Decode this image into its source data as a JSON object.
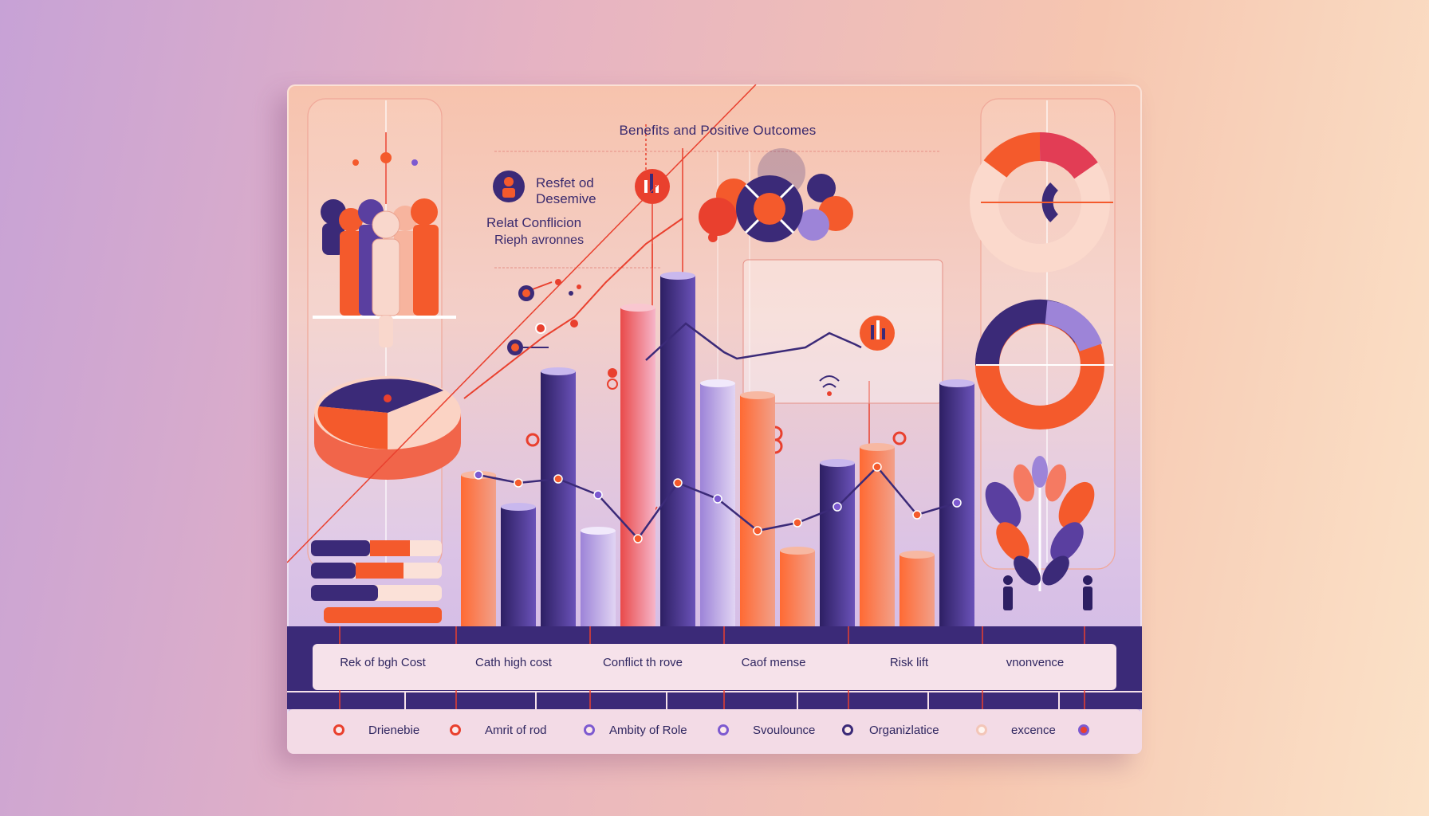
{
  "title": "Benefits and Positive Outcomes",
  "legend": {
    "line1": "Resfet od",
    "line2": "Desemive",
    "line3": "Relat Conflicion",
    "line4": "Rieph avronnes"
  },
  "categories": [
    "Rek of bgh Cost",
    "Cath high cost",
    "Conflict th rove",
    "Caof mense",
    "Risk lift",
    "vnonvence"
  ],
  "footer": [
    {
      "label": "Drienebie",
      "dot": "#e9402e"
    },
    {
      "label": "Amrit of rod",
      "dot": "#e9402e"
    },
    {
      "label": "Ambity of Role",
      "dot": "#7d5ad0"
    },
    {
      "label": "Svoulounce",
      "dot": "#7d5ad0"
    },
    {
      "label": "Organizlatice",
      "dot": "#3b2a78"
    },
    {
      "label": "excence",
      "dot": "#f3c6b8"
    }
  ],
  "colors": {
    "navy": "#3b2a78",
    "orange": "#f45a2c",
    "red": "#e9402e",
    "lavender": "#9d84d8",
    "peach": "#f7c3b0"
  },
  "chart_data": {
    "type": "bar",
    "title": "Benefits and Positive Outcomes",
    "bars": [
      38,
      30,
      64,
      24,
      80,
      88,
      61,
      58,
      19,
      41,
      45,
      18,
      61
    ],
    "bar_colors": [
      "orange",
      "navy",
      "navy",
      "lavender",
      "pink",
      "navy",
      "lavender",
      "orange",
      "orange",
      "navy",
      "orange",
      "orange",
      "navy"
    ],
    "line": [
      38,
      36,
      37,
      33,
      22,
      36,
      32,
      24,
      26,
      30,
      40,
      28,
      31
    ],
    "ylim": [
      0,
      100
    ]
  },
  "icons": [
    "people-group-icon",
    "pie-chart-icon",
    "bars-icon",
    "donut-icon",
    "plant-icon",
    "person-icon"
  ]
}
